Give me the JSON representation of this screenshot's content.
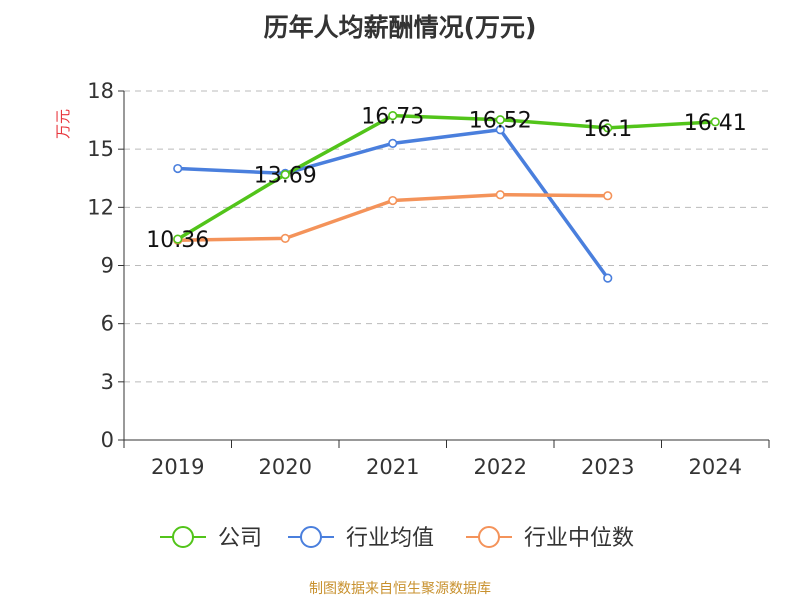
{
  "chart_data": {
    "type": "line",
    "title": "历年人均薪酬情况(万元)",
    "ylabel": "万元",
    "ylim": [
      0,
      18
    ],
    "yticks": [
      0,
      3,
      6,
      9,
      12,
      15,
      18
    ],
    "categories": [
      "2019",
      "2020",
      "2021",
      "2022",
      "2023",
      "2024"
    ],
    "grid": true,
    "legend_position": "bottom",
    "series": [
      {
        "name": "公司",
        "color": "#52c41a",
        "values": [
          10.36,
          13.69,
          16.73,
          16.52,
          16.1,
          16.41
        ],
        "labels": true
      },
      {
        "name": "行业均值",
        "color": "#4a7fdd",
        "values": [
          14.0,
          13.75,
          15.3,
          16.0,
          8.35,
          null
        ],
        "labels": false
      },
      {
        "name": "行业中位数",
        "color": "#f4935a",
        "values": [
          10.3,
          10.4,
          12.35,
          12.65,
          12.6,
          null
        ],
        "labels": false
      }
    ]
  },
  "source_text": "制图数据来自恒生聚源数据库",
  "colors": {
    "ylabel": "#e8363d",
    "source": "#c8912e",
    "axis": "#333333",
    "grid": "#bbbbbb"
  }
}
